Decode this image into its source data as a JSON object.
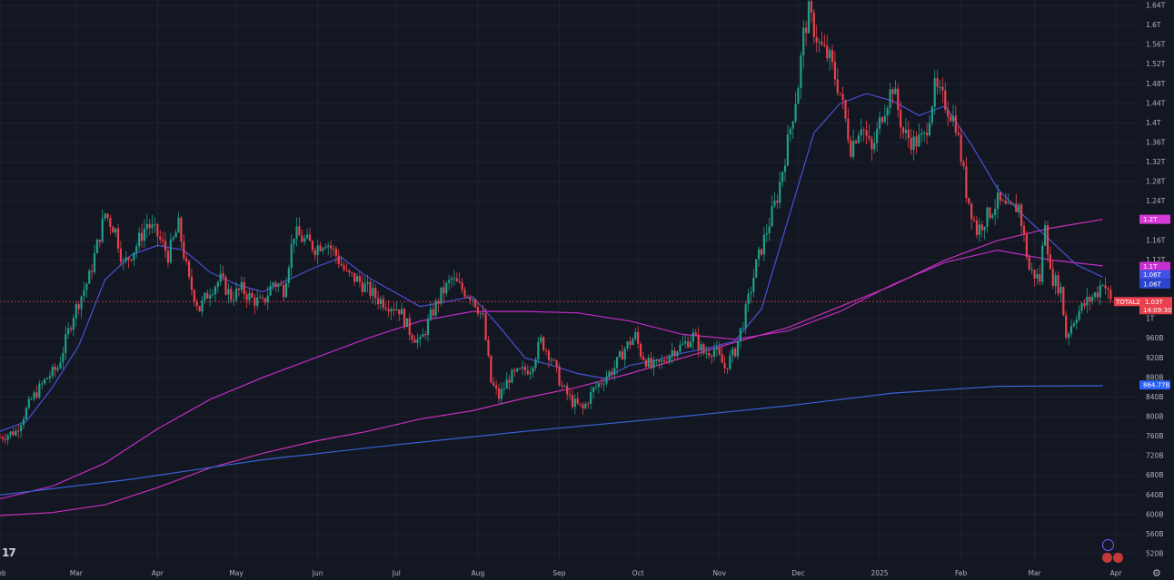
{
  "chart_data": {
    "type": "candlestick",
    "symbol": "TOTAL2",
    "last_price": "1.03T",
    "countdown": "14:09:30",
    "price_scale": {
      "unit": "B",
      "min": 500,
      "max": 1650,
      "ticks": [
        {
          "v": 1640,
          "label": "1.64T"
        },
        {
          "v": 1600,
          "label": "1.6T"
        },
        {
          "v": 1560,
          "label": "1.56T"
        },
        {
          "v": 1520,
          "label": "1.52T"
        },
        {
          "v": 1480,
          "label": "1.48T"
        },
        {
          "v": 1440,
          "label": "1.44T"
        },
        {
          "v": 1400,
          "label": "1.4T"
        },
        {
          "v": 1360,
          "label": "1.36T"
        },
        {
          "v": 1320,
          "label": "1.32T"
        },
        {
          "v": 1280,
          "label": "1.28T"
        },
        {
          "v": 1240,
          "label": "1.24T"
        },
        {
          "v": 1160,
          "label": "1.16T"
        },
        {
          "v": 1120,
          "label": "1.12T"
        },
        {
          "v": 1000,
          "label": "1T"
        },
        {
          "v": 960,
          "label": "960B"
        },
        {
          "v": 920,
          "label": "920B"
        },
        {
          "v": 880,
          "label": "880B"
        },
        {
          "v": 840,
          "label": "840B"
        },
        {
          "v": 800,
          "label": "800B"
        },
        {
          "v": 760,
          "label": "760B"
        },
        {
          "v": 720,
          "label": "720B"
        },
        {
          "v": 680,
          "label": "680B"
        },
        {
          "v": 640,
          "label": "640B"
        },
        {
          "v": 600,
          "label": "600B"
        },
        {
          "v": 560,
          "label": "560B"
        },
        {
          "v": 520,
          "label": "520B"
        }
      ]
    },
    "time_scale": {
      "start_day": 0,
      "end_day": 426,
      "ticks": [
        {
          "day": 0,
          "label": "Feb"
        },
        {
          "day": 29,
          "label": "Mar"
        },
        {
          "day": 60,
          "label": "Apr"
        },
        {
          "day": 90,
          "label": "May"
        },
        {
          "day": 121,
          "label": "Jun"
        },
        {
          "day": 151,
          "label": "Jul"
        },
        {
          "day": 182,
          "label": "Aug"
        },
        {
          "day": 213,
          "label": "Sep"
        },
        {
          "day": 243,
          "label": "Oct"
        },
        {
          "day": 274,
          "label": "Nov"
        },
        {
          "day": 304,
          "label": "Dec"
        },
        {
          "day": 335,
          "label": "2025"
        },
        {
          "day": 366,
          "label": "Feb"
        },
        {
          "day": 394,
          "label": "Mar"
        },
        {
          "day": 425,
          "label": "Apr"
        }
      ]
    },
    "price_path": [
      [
        0,
        758
      ],
      [
        6,
        770
      ],
      [
        12,
        835
      ],
      [
        18,
        880
      ],
      [
        22,
        900
      ],
      [
        28,
        1010
      ],
      [
        34,
        1085
      ],
      [
        40,
        1215
      ],
      [
        44,
        1180
      ],
      [
        47,
        1110
      ],
      [
        52,
        1150
      ],
      [
        56,
        1195
      ],
      [
        60,
        1170
      ],
      [
        64,
        1130
      ],
      [
        68,
        1190
      ],
      [
        72,
        1075
      ],
      [
        76,
        1020
      ],
      [
        80,
        1060
      ],
      [
        84,
        1080
      ],
      [
        88,
        1045
      ],
      [
        92,
        1060
      ],
      [
        96,
        1040
      ],
      [
        100,
        1030
      ],
      [
        104,
        1075
      ],
      [
        108,
        1060
      ],
      [
        112,
        1175
      ],
      [
        116,
        1160
      ],
      [
        120,
        1145
      ],
      [
        124,
        1160
      ],
      [
        128,
        1130
      ],
      [
        132,
        1090
      ],
      [
        136,
        1080
      ],
      [
        140,
        1060
      ],
      [
        144,
        1040
      ],
      [
        148,
        1030
      ],
      [
        152,
        1020
      ],
      [
        156,
        975
      ],
      [
        160,
        950
      ],
      [
        164,
        1005
      ],
      [
        168,
        1050
      ],
      [
        172,
        1080
      ],
      [
        176,
        1060
      ],
      [
        180,
        1045
      ],
      [
        184,
        1000
      ],
      [
        187,
        870
      ],
      [
        190,
        840
      ],
      [
        194,
        880
      ],
      [
        198,
        890
      ],
      [
        202,
        900
      ],
      [
        206,
        955
      ],
      [
        210,
        920
      ],
      [
        214,
        860
      ],
      [
        218,
        830
      ],
      [
        222,
        815
      ],
      [
        226,
        855
      ],
      [
        230,
        878
      ],
      [
        234,
        900
      ],
      [
        238,
        940
      ],
      [
        242,
        965
      ],
      [
        244,
        930
      ],
      [
        248,
        900
      ],
      [
        252,
        910
      ],
      [
        256,
        935
      ],
      [
        260,
        945
      ],
      [
        264,
        965
      ],
      [
        268,
        930
      ],
      [
        272,
        938
      ],
      [
        276,
        900
      ],
      [
        280,
        935
      ],
      [
        284,
        1015
      ],
      [
        288,
        1110
      ],
      [
        292,
        1180
      ],
      [
        296,
        1250
      ],
      [
        300,
        1360
      ],
      [
        304,
        1480
      ],
      [
        306,
        1580
      ],
      [
        308,
        1625
      ],
      [
        312,
        1560
      ],
      [
        316,
        1530
      ],
      [
        320,
        1460
      ],
      [
        324,
        1350
      ],
      [
        328,
        1400
      ],
      [
        332,
        1340
      ],
      [
        336,
        1420
      ],
      [
        340,
        1475
      ],
      [
        344,
        1380
      ],
      [
        348,
        1360
      ],
      [
        352,
        1370
      ],
      [
        356,
        1470
      ],
      [
        360,
        1440
      ],
      [
        364,
        1400
      ],
      [
        368,
        1260
      ],
      [
        372,
        1180
      ],
      [
        376,
        1210
      ],
      [
        380,
        1240
      ],
      [
        384,
        1220
      ],
      [
        388,
        1230
      ],
      [
        392,
        1100
      ],
      [
        396,
        1080
      ],
      [
        398,
        1205
      ],
      [
        400,
        1090
      ],
      [
        404,
        1060
      ],
      [
        406,
        965
      ],
      [
        410,
        1010
      ],
      [
        414,
        1035
      ],
      [
        418,
        1055
      ],
      [
        420,
        1080
      ],
      [
        423,
        1035
      ]
    ],
    "series": [
      {
        "kind": "ma_fast",
        "color": "#4a4fd6",
        "points": [
          [
            0,
            770
          ],
          [
            10,
            790
          ],
          [
            20,
            860
          ],
          [
            30,
            945
          ],
          [
            40,
            1080
          ],
          [
            50,
            1130
          ],
          [
            60,
            1150
          ],
          [
            70,
            1140
          ],
          [
            80,
            1095
          ],
          [
            90,
            1070
          ],
          [
            100,
            1055
          ],
          [
            110,
            1080
          ],
          [
            120,
            1105
          ],
          [
            130,
            1125
          ],
          [
            140,
            1085
          ],
          [
            150,
            1055
          ],
          [
            160,
            1025
          ],
          [
            170,
            1035
          ],
          [
            180,
            1045
          ],
          [
            190,
            985
          ],
          [
            200,
            920
          ],
          [
            210,
            905
          ],
          [
            220,
            888
          ],
          [
            230,
            878
          ],
          [
            240,
            905
          ],
          [
            250,
            915
          ],
          [
            260,
            930
          ],
          [
            270,
            940
          ],
          [
            280,
            955
          ],
          [
            290,
            1020
          ],
          [
            300,
            1200
          ],
          [
            310,
            1380
          ],
          [
            320,
            1440
          ],
          [
            330,
            1460
          ],
          [
            340,
            1445
          ],
          [
            350,
            1415
          ],
          [
            360,
            1435
          ],
          [
            370,
            1355
          ],
          [
            380,
            1265
          ],
          [
            390,
            1210
          ],
          [
            400,
            1160
          ],
          [
            410,
            1110
          ],
          [
            420,
            1085
          ]
        ]
      },
      {
        "kind": "ma_mid",
        "color": "#c22bc8",
        "points": [
          [
            0,
            632
          ],
          [
            20,
            658
          ],
          [
            40,
            705
          ],
          [
            60,
            775
          ],
          [
            80,
            835
          ],
          [
            100,
            880
          ],
          [
            120,
            920
          ],
          [
            140,
            960
          ],
          [
            160,
            995
          ],
          [
            180,
            1015
          ],
          [
            200,
            1015
          ],
          [
            220,
            1012
          ],
          [
            240,
            995
          ],
          [
            260,
            968
          ],
          [
            280,
            958
          ],
          [
            300,
            975
          ],
          [
            320,
            1015
          ],
          [
            340,
            1070
          ],
          [
            360,
            1115
          ],
          [
            380,
            1140
          ],
          [
            400,
            1120
          ],
          [
            420,
            1108
          ]
        ]
      },
      {
        "kind": "ma_slow",
        "color": "#c730b8",
        "points": [
          [
            0,
            598
          ],
          [
            20,
            604
          ],
          [
            40,
            620
          ],
          [
            60,
            655
          ],
          [
            80,
            695
          ],
          [
            100,
            725
          ],
          [
            120,
            750
          ],
          [
            140,
            770
          ],
          [
            160,
            795
          ],
          [
            180,
            812
          ],
          [
            200,
            838
          ],
          [
            220,
            860
          ],
          [
            240,
            888
          ],
          [
            260,
            920
          ],
          [
            280,
            952
          ],
          [
            300,
            982
          ],
          [
            320,
            1025
          ],
          [
            340,
            1068
          ],
          [
            360,
            1120
          ],
          [
            380,
            1160
          ],
          [
            400,
            1185
          ],
          [
            420,
            1203
          ]
        ]
      },
      {
        "kind": "ma_long",
        "color": "#3a61d6",
        "points": [
          [
            0,
            640
          ],
          [
            50,
            672
          ],
          [
            100,
            712
          ],
          [
            150,
            742
          ],
          [
            200,
            770
          ],
          [
            250,
            795
          ],
          [
            300,
            822
          ],
          [
            340,
            848
          ],
          [
            380,
            862
          ],
          [
            420,
            863
          ]
        ]
      }
    ],
    "price_badges": [
      {
        "v": 1203,
        "label": "1.2T",
        "color": "#d63ad8"
      },
      {
        "v": 1107,
        "label": "1.1T",
        "color": "#c730d0"
      },
      {
        "v": 1090,
        "label": "1.06T",
        "color": "#4251e8"
      },
      {
        "v": 1071,
        "label": "1.06T",
        "color": "#2944ce"
      },
      {
        "v": 864.77,
        "label": "864.77B",
        "color": "#2962ff"
      }
    ]
  },
  "ui": {
    "logo_text": "17",
    "gear_symbol": "⚙"
  }
}
